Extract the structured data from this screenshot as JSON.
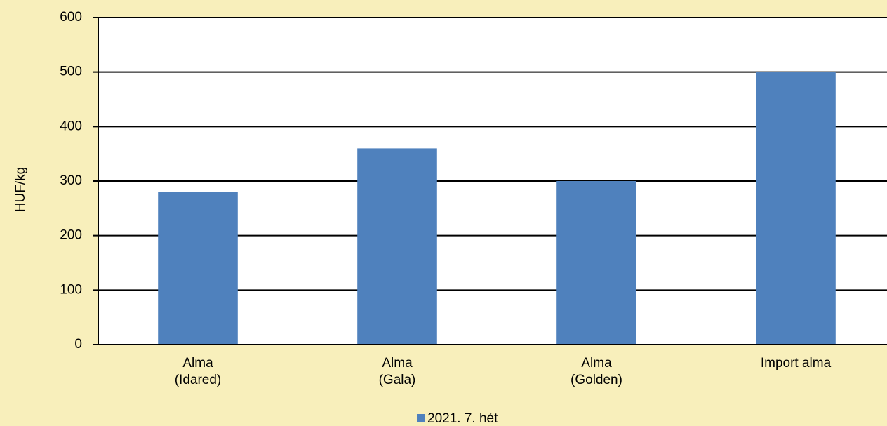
{
  "chart_data": {
    "type": "bar",
    "y_axis_label": "HUF/kg",
    "categories": [
      "Alma\n(Idared)",
      "Alma\n(Gala)",
      "Alma\n(Golden)",
      "Import alma"
    ],
    "series": [
      {
        "name": "2021. 7. hét",
        "color": "#4f81bd",
        "values": [
          280,
          360,
          300,
          500
        ]
      }
    ],
    "ylim": [
      0,
      600
    ],
    "yticks": [
      0,
      100,
      200,
      300,
      400,
      500,
      600
    ],
    "grid": true,
    "legend": "bottom"
  }
}
